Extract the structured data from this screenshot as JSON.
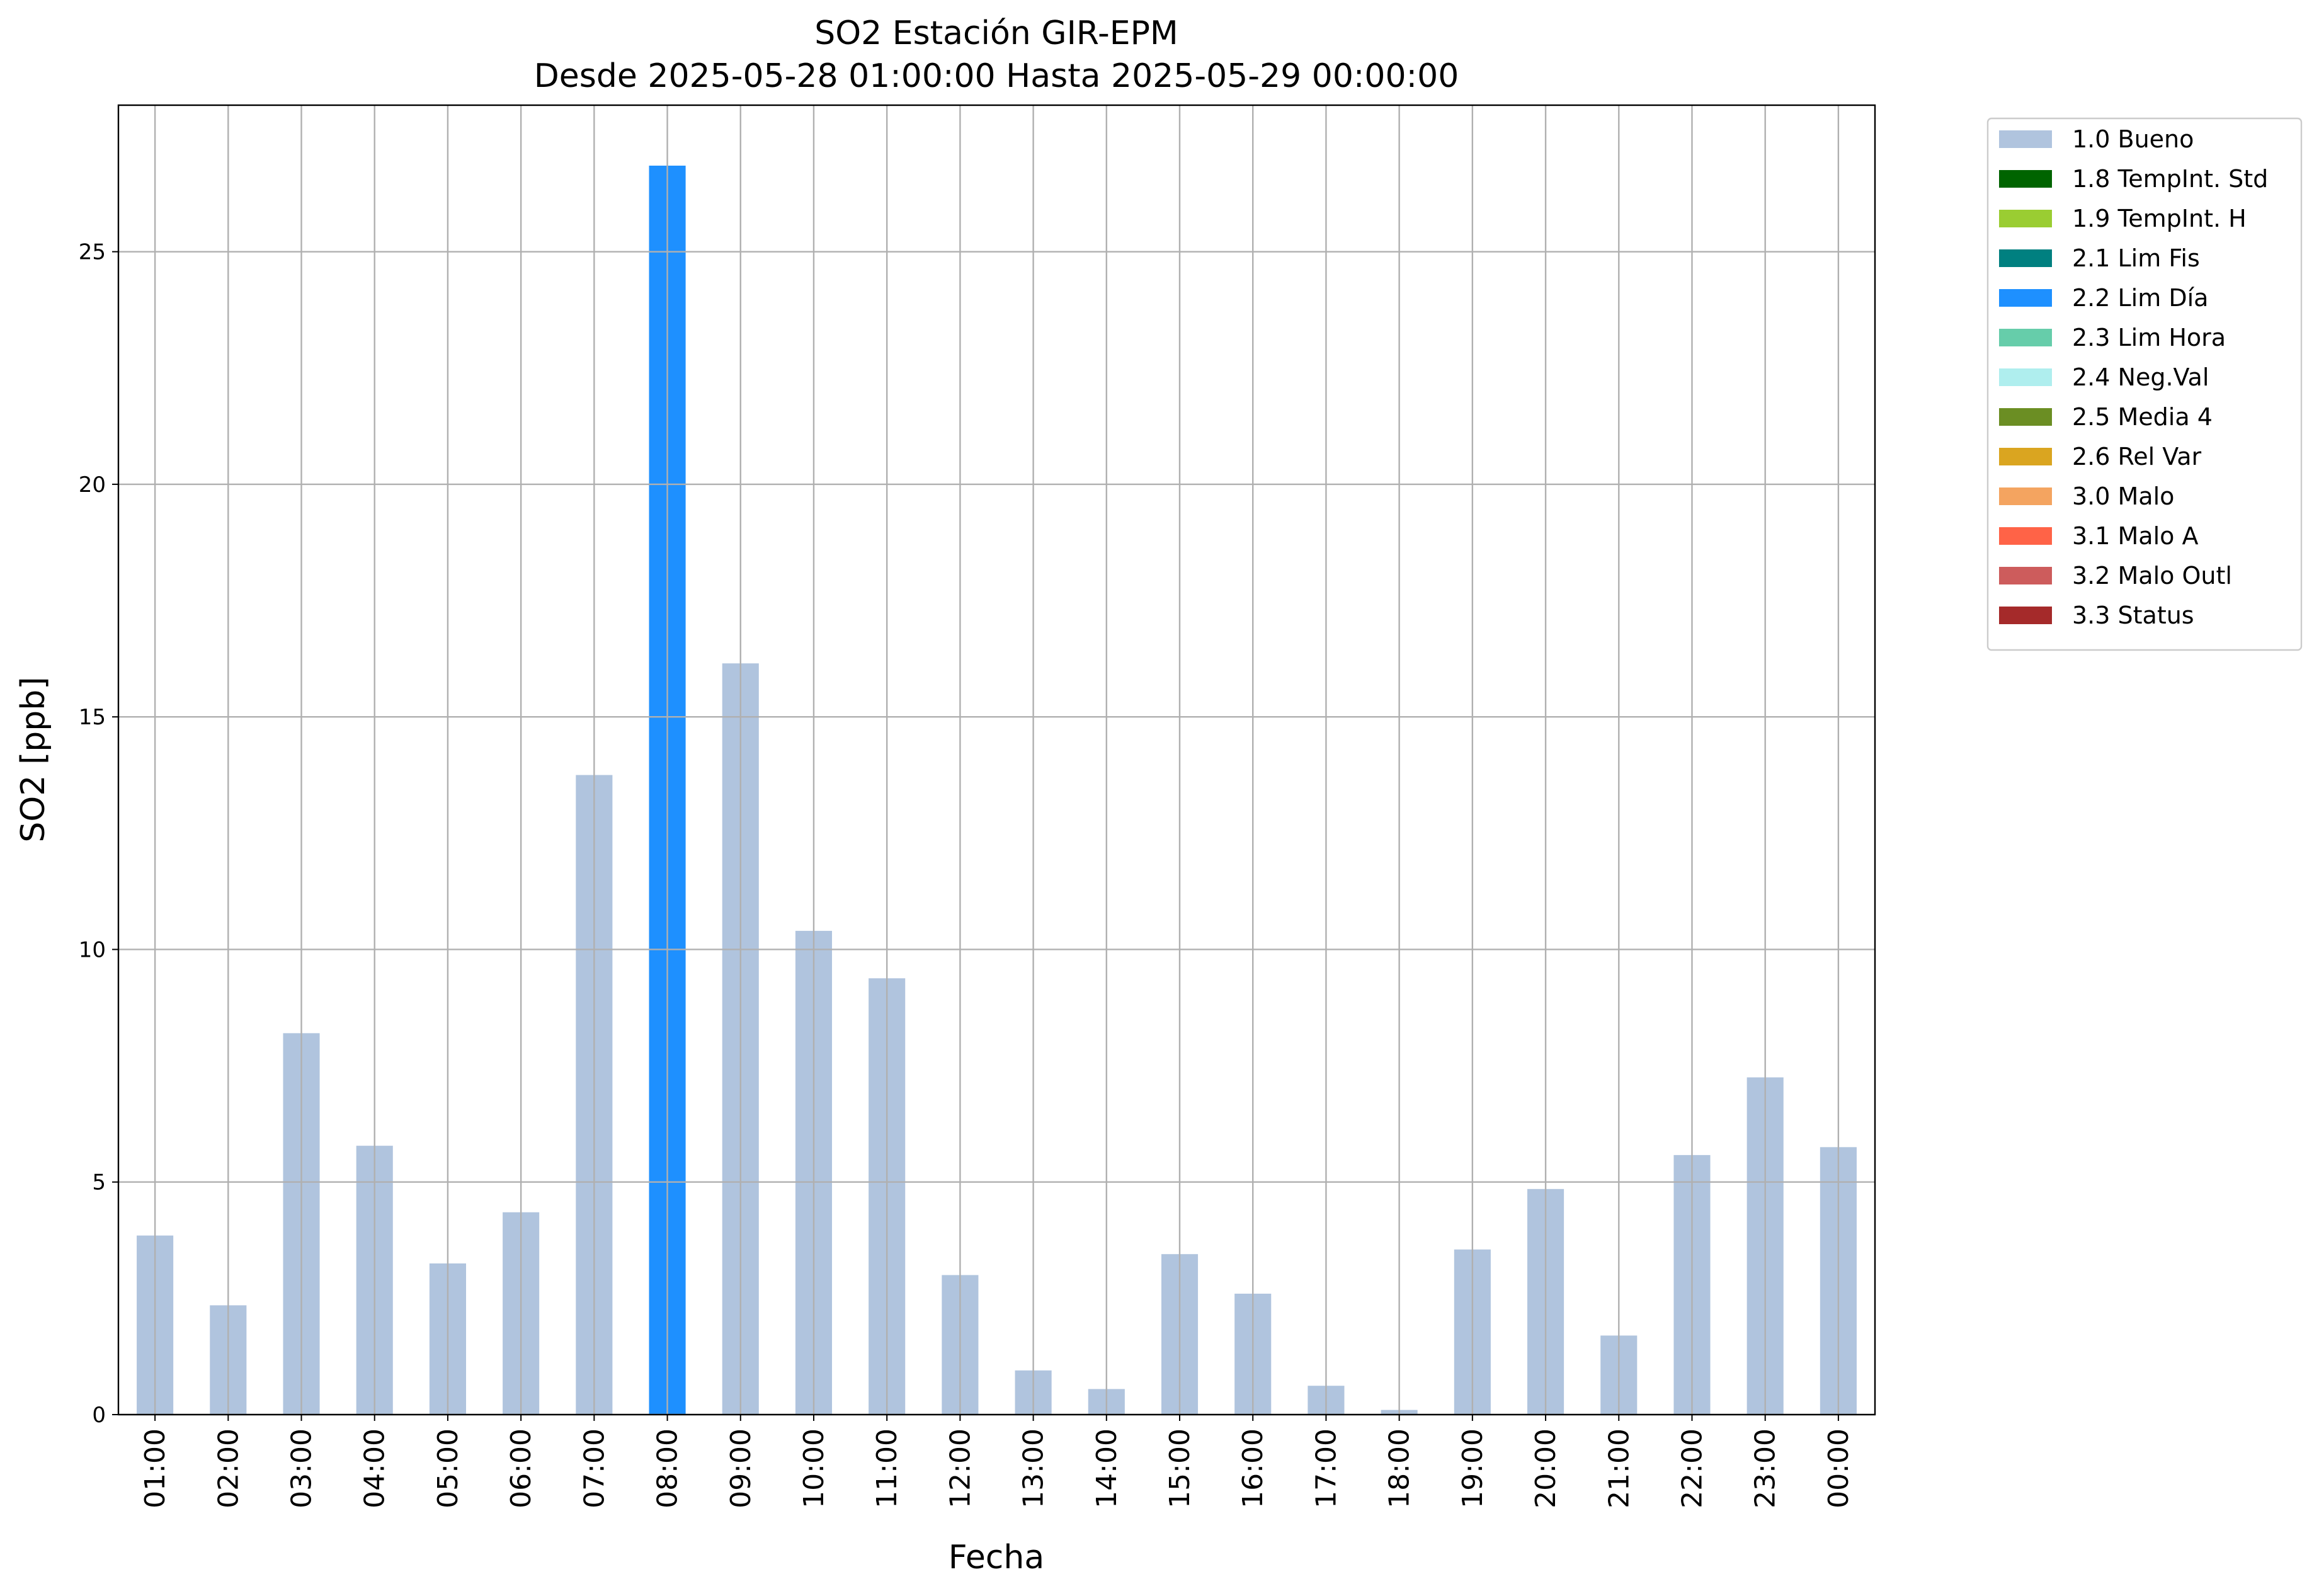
{
  "chart_data": {
    "type": "bar",
    "stacked": true,
    "title": "SO2 Estación GIR-EPM",
    "subtitle": "Desde 2025-05-28 01:00:00 Hasta 2025-05-29 00:00:00",
    "x_label": "Fecha",
    "y_label": "SO2 [ppb]",
    "categories": [
      "01:00",
      "02:00",
      "03:00",
      "04:00",
      "05:00",
      "06:00",
      "07:00",
      "08:00",
      "09:00",
      "10:00",
      "11:00",
      "12:00",
      "13:00",
      "14:00",
      "15:00",
      "16:00",
      "17:00",
      "18:00",
      "19:00",
      "20:00",
      "21:00",
      "22:00",
      "23:00",
      "00:00"
    ],
    "series": [
      {
        "name": "1.0 Bueno",
        "color": "#b0c4de",
        "values": [
          3.85,
          2.35,
          8.2,
          5.78,
          3.25,
          4.35,
          13.75,
          null,
          16.15,
          10.4,
          9.38,
          3.0,
          0.95,
          0.55,
          3.45,
          2.6,
          0.62,
          0.1,
          3.55,
          4.85,
          1.7,
          5.58,
          7.25,
          5.75
        ]
      },
      {
        "name": "1.8 TempInt. Std",
        "color": "#006400",
        "values": [
          null,
          null,
          null,
          null,
          null,
          null,
          null,
          null,
          null,
          null,
          null,
          null,
          null,
          null,
          null,
          null,
          null,
          null,
          null,
          null,
          null,
          null,
          null,
          null
        ]
      },
      {
        "name": "1.9 TempInt. H",
        "color": "#9acd32",
        "values": [
          null,
          null,
          null,
          null,
          null,
          null,
          null,
          null,
          null,
          null,
          null,
          null,
          null,
          null,
          null,
          null,
          null,
          null,
          null,
          null,
          null,
          null,
          null,
          null
        ]
      },
      {
        "name": "2.1 Lim Fis",
        "color": "#008080",
        "values": [
          null,
          null,
          null,
          null,
          null,
          null,
          null,
          null,
          null,
          null,
          null,
          null,
          null,
          null,
          null,
          null,
          null,
          null,
          null,
          null,
          null,
          null,
          null,
          null
        ]
      },
      {
        "name": "2.2 Lim Día",
        "color": "#1e90ff",
        "values": [
          null,
          null,
          null,
          null,
          null,
          null,
          null,
          26.85,
          null,
          null,
          null,
          null,
          null,
          null,
          null,
          null,
          null,
          null,
          null,
          null,
          null,
          null,
          null,
          null
        ]
      },
      {
        "name": "2.3 Lim Hora",
        "color": "#66cdaa",
        "values": [
          null,
          null,
          null,
          null,
          null,
          null,
          null,
          null,
          null,
          null,
          null,
          null,
          null,
          null,
          null,
          null,
          null,
          null,
          null,
          null,
          null,
          null,
          null,
          null
        ]
      },
      {
        "name": "2.4 Neg.Val",
        "color": "#afeeee",
        "values": [
          null,
          null,
          null,
          null,
          null,
          null,
          null,
          null,
          null,
          null,
          null,
          null,
          null,
          null,
          null,
          null,
          null,
          null,
          null,
          null,
          null,
          null,
          null,
          null
        ]
      },
      {
        "name": "2.5 Media 4",
        "color": "#6b8e23",
        "values": [
          null,
          null,
          null,
          null,
          null,
          null,
          null,
          null,
          null,
          null,
          null,
          null,
          null,
          null,
          null,
          null,
          null,
          null,
          null,
          null,
          null,
          null,
          null,
          null
        ]
      },
      {
        "name": "2.6 Rel Var",
        "color": "#daa520",
        "values": [
          null,
          null,
          null,
          null,
          null,
          null,
          null,
          null,
          null,
          null,
          null,
          null,
          null,
          null,
          null,
          null,
          null,
          null,
          null,
          null,
          null,
          null,
          null,
          null
        ]
      },
      {
        "name": "3.0 Malo",
        "color": "#f4a460",
        "values": [
          null,
          null,
          null,
          null,
          null,
          null,
          null,
          null,
          null,
          null,
          null,
          null,
          null,
          null,
          null,
          null,
          null,
          null,
          null,
          null,
          null,
          null,
          null,
          null
        ]
      },
      {
        "name": "3.1 Malo A",
        "color": "#ff6347",
        "values": [
          null,
          null,
          null,
          null,
          null,
          null,
          null,
          null,
          null,
          null,
          null,
          null,
          null,
          null,
          null,
          null,
          null,
          null,
          null,
          null,
          null,
          null,
          null,
          null
        ]
      },
      {
        "name": "3.2 Malo Outl",
        "color": "#cd5c5c",
        "values": [
          null,
          null,
          null,
          null,
          null,
          null,
          null,
          null,
          null,
          null,
          null,
          null,
          null,
          null,
          null,
          null,
          null,
          null,
          null,
          null,
          null,
          null,
          null,
          null
        ]
      },
      {
        "name": "3.3 Status",
        "color": "#a52a2a",
        "values": [
          null,
          null,
          null,
          null,
          null,
          null,
          null,
          null,
          null,
          null,
          null,
          null,
          null,
          null,
          null,
          null,
          null,
          null,
          null,
          null,
          null,
          null,
          null,
          null
        ]
      }
    ],
    "ylim": [
      0,
      28.15
    ],
    "yticks": [
      0,
      5,
      10,
      15,
      20,
      25
    ],
    "grid": true,
    "legend": "outside-right"
  }
}
